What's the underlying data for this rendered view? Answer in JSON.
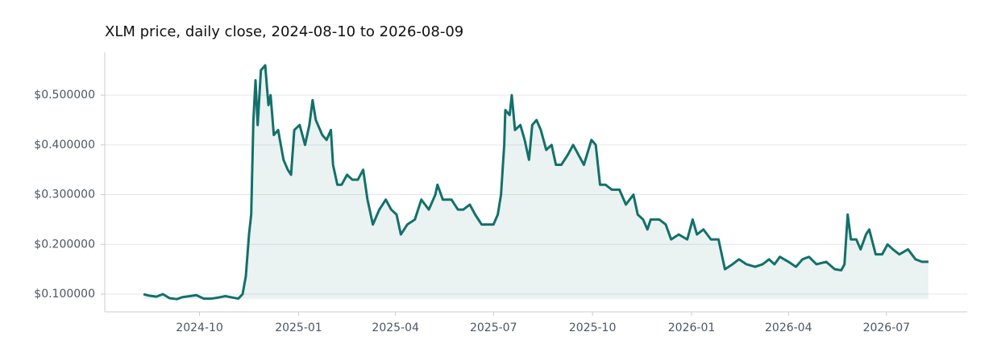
{
  "chart_data": {
    "type": "line",
    "title": "XLM price, daily close, 2024-08-10 to 2026-08-09",
    "color": "#13706a",
    "area": true,
    "grid": true,
    "xlim": [
      "2024-07-05",
      "2026-09-14"
    ],
    "ylim": [
      0.0644,
      0.586
    ],
    "yticks": [
      {
        "value": 0.1,
        "label": "$0.100000"
      },
      {
        "value": 0.2,
        "label": "$0.200000"
      },
      {
        "value": 0.3,
        "label": "$0.300000"
      },
      {
        "value": 0.4,
        "label": "$0.400000"
      },
      {
        "value": 0.5,
        "label": "$0.500000"
      }
    ],
    "xticks": [
      {
        "value": "2024-10-01",
        "label": "2024-10"
      },
      {
        "value": "2025-01-01",
        "label": "2025-01"
      },
      {
        "value": "2025-04-01",
        "label": "2025-04"
      },
      {
        "value": "2025-07-01",
        "label": "2025-07"
      },
      {
        "value": "2025-10-01",
        "label": "2025-10"
      },
      {
        "value": "2026-01-01",
        "label": "2026-01"
      },
      {
        "value": "2026-04-01",
        "label": "2026-04"
      },
      {
        "value": "2026-07-01",
        "label": "2026-07"
      }
    ],
    "x": [
      "2024-08-10",
      "2024-08-15",
      "2024-08-22",
      "2024-08-28",
      "2024-09-03",
      "2024-09-10",
      "2024-09-15",
      "2024-09-22",
      "2024-09-28",
      "2024-10-05",
      "2024-10-12",
      "2024-10-18",
      "2024-10-25",
      "2024-11-01",
      "2024-11-06",
      "2024-11-10",
      "2024-11-13",
      "2024-11-16",
      "2024-11-18",
      "2024-11-20",
      "2024-11-22",
      "2024-11-24",
      "2024-11-27",
      "2024-12-01",
      "2024-12-04",
      "2024-12-06",
      "2024-12-09",
      "2024-12-13",
      "2024-12-18",
      "2024-12-22",
      "2024-12-25",
      "2024-12-28",
      "2025-01-02",
      "2025-01-07",
      "2025-01-11",
      "2025-01-14",
      "2025-01-17",
      "2025-01-23",
      "2025-01-27",
      "2025-01-31",
      "2025-02-02",
      "2025-02-06",
      "2025-02-10",
      "2025-02-15",
      "2025-02-20",
      "2025-02-25",
      "2025-03-02",
      "2025-03-06",
      "2025-03-11",
      "2025-03-17",
      "2025-03-23",
      "2025-03-28",
      "2025-04-02",
      "2025-04-06",
      "2025-04-12",
      "2025-04-19",
      "2025-04-25",
      "2025-05-02",
      "2025-05-08",
      "2025-05-10",
      "2025-05-15",
      "2025-05-23",
      "2025-05-29",
      "2025-06-03",
      "2025-06-09",
      "2025-06-14",
      "2025-06-20",
      "2025-06-25",
      "2025-07-01",
      "2025-07-05",
      "2025-07-08",
      "2025-07-11",
      "2025-07-12",
      "2025-07-16",
      "2025-07-18",
      "2025-07-21",
      "2025-07-26",
      "2025-07-30",
      "2025-08-03",
      "2025-08-06",
      "2025-08-10",
      "2025-08-14",
      "2025-08-19",
      "2025-08-24",
      "2025-08-28",
      "2025-09-02",
      "2025-09-08",
      "2025-09-13",
      "2025-09-18",
      "2025-09-23",
      "2025-09-30",
      "2025-10-04",
      "2025-10-08",
      "2025-10-13",
      "2025-10-19",
      "2025-10-26",
      "2025-11-01",
      "2025-11-08",
      "2025-11-12",
      "2025-11-17",
      "2025-11-21",
      "2025-11-24",
      "2025-12-02",
      "2025-12-08",
      "2025-12-13",
      "2025-12-20",
      "2025-12-28",
      "2026-01-02",
      "2026-01-06",
      "2026-01-12",
      "2026-01-19",
      "2026-01-26",
      "2026-02-01",
      "2026-02-08",
      "2026-02-14",
      "2026-02-21",
      "2026-03-01",
      "2026-03-08",
      "2026-03-14",
      "2026-03-19",
      "2026-03-24",
      "2026-04-01",
      "2026-04-08",
      "2026-04-14",
      "2026-04-20",
      "2026-04-27",
      "2026-05-06",
      "2026-05-14",
      "2026-05-20",
      "2026-05-23",
      "2026-05-26",
      "2026-05-29",
      "2026-06-03",
      "2026-06-07",
      "2026-06-12",
      "2026-06-15",
      "2026-06-21",
      "2026-06-27",
      "2026-07-02",
      "2026-07-07",
      "2026-07-13",
      "2026-07-21",
      "2026-07-28",
      "2026-08-03",
      "2026-08-09"
    ],
    "values": [
      0.1,
      0.097,
      0.095,
      0.1,
      0.092,
      0.09,
      0.094,
      0.096,
      0.098,
      0.091,
      0.091,
      0.093,
      0.096,
      0.093,
      0.091,
      0.1,
      0.136,
      0.221,
      0.26,
      0.448,
      0.53,
      0.44,
      0.55,
      0.56,
      0.48,
      0.5,
      0.42,
      0.43,
      0.37,
      0.35,
      0.34,
      0.43,
      0.44,
      0.4,
      0.44,
      0.49,
      0.45,
      0.42,
      0.41,
      0.43,
      0.36,
      0.32,
      0.32,
      0.34,
      0.33,
      0.33,
      0.35,
      0.29,
      0.24,
      0.27,
      0.29,
      0.27,
      0.26,
      0.22,
      0.24,
      0.25,
      0.29,
      0.27,
      0.3,
      0.32,
      0.29,
      0.29,
      0.27,
      0.27,
      0.28,
      0.26,
      0.24,
      0.24,
      0.24,
      0.26,
      0.3,
      0.4,
      0.47,
      0.46,
      0.5,
      0.43,
      0.44,
      0.41,
      0.37,
      0.44,
      0.45,
      0.43,
      0.39,
      0.4,
      0.36,
      0.36,
      0.38,
      0.4,
      0.38,
      0.36,
      0.41,
      0.4,
      0.32,
      0.32,
      0.31,
      0.31,
      0.28,
      0.3,
      0.26,
      0.25,
      0.23,
      0.25,
      0.25,
      0.24,
      0.21,
      0.22,
      0.21,
      0.25,
      0.22,
      0.23,
      0.21,
      0.21,
      0.15,
      0.16,
      0.17,
      0.16,
      0.155,
      0.16,
      0.17,
      0.16,
      0.175,
      0.165,
      0.155,
      0.17,
      0.175,
      0.16,
      0.165,
      0.15,
      0.148,
      0.16,
      0.26,
      0.21,
      0.21,
      0.19,
      0.22,
      0.23,
      0.18,
      0.18,
      0.2,
      0.19,
      0.18,
      0.19,
      0.17,
      0.165,
      0.165
    ]
  }
}
